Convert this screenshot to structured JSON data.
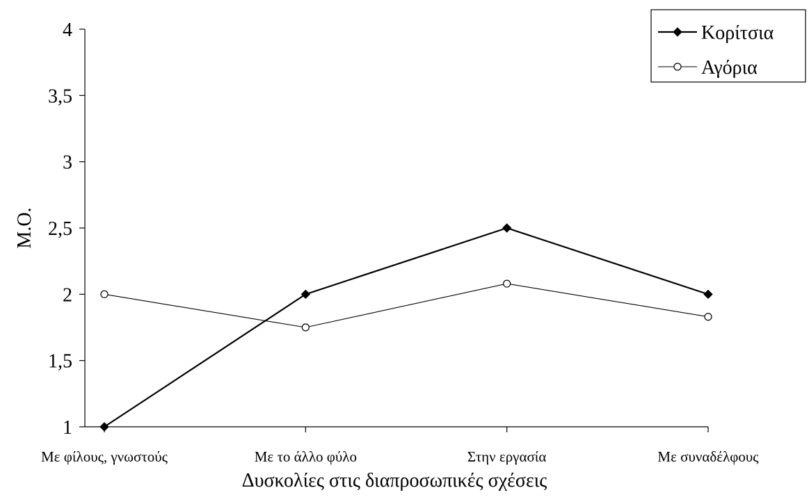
{
  "chart_data": {
    "type": "line",
    "title": "",
    "xlabel": "Δυσκολίες στις διαπροσωπικές σχέσεις",
    "ylabel": "Μ.Ο.",
    "categories": [
      "Με φίλους, γνωστούς",
      "Με το άλλο φύλο",
      "Στην εργασία",
      "Με συναδέλφους"
    ],
    "ylim": [
      1,
      4
    ],
    "yticks": [
      "1",
      "1,5",
      "2",
      "2,5",
      "3",
      "3,5",
      "4"
    ],
    "ytick_values": [
      1,
      1.5,
      2,
      2.5,
      3,
      3.5,
      4
    ],
    "grid": false,
    "legend_position": "top-right",
    "series": [
      {
        "name": "Κορίτσια",
        "values": [
          1.0,
          2.0,
          2.5,
          2.0
        ],
        "marker": "filled-diamond",
        "color": "#000000"
      },
      {
        "name": "Αγόρια",
        "values": [
          2.0,
          1.75,
          2.08,
          1.83
        ],
        "marker": "open-circle",
        "color": "#000000"
      }
    ]
  }
}
